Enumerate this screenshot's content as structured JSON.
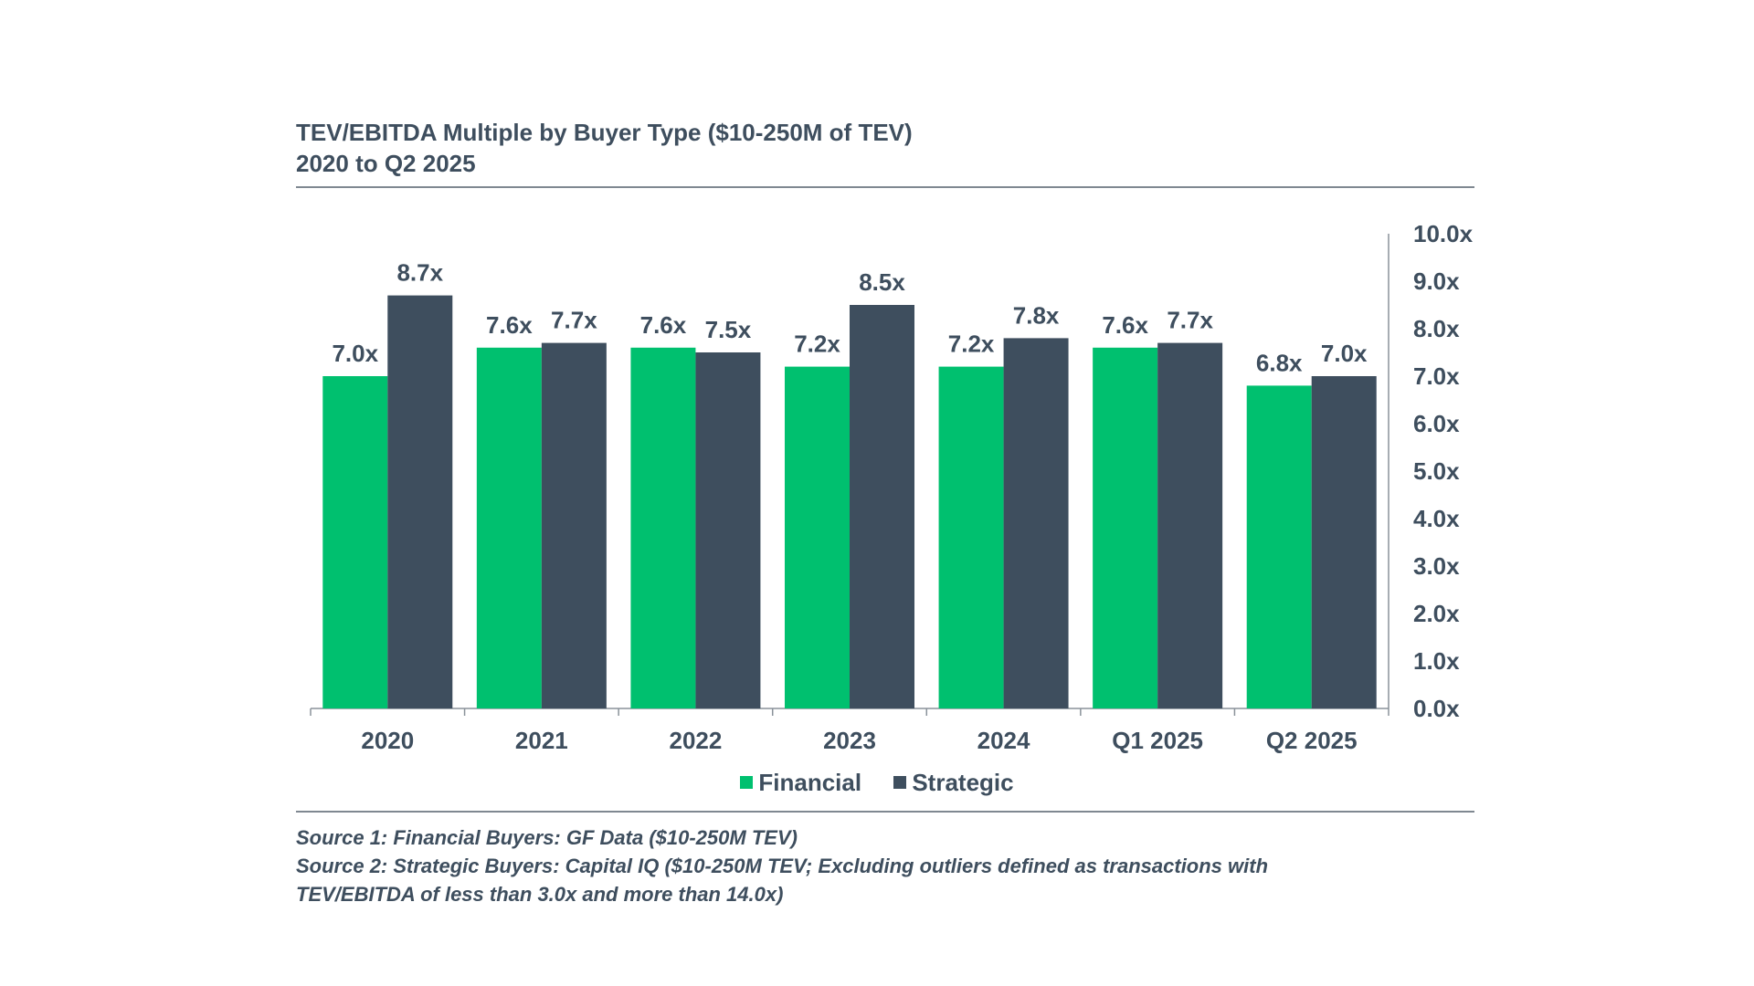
{
  "chart_data": {
    "type": "bar",
    "title": "TEV/EBITDA Multiple by Buyer Type ($10-250M of TEV)",
    "subtitle": "2020 to Q2 2025",
    "categories": [
      "2020",
      "2021",
      "2022",
      "2023",
      "2024",
      "Q1 2025",
      "Q2 2025"
    ],
    "series": [
      {
        "name": "Financial",
        "color": "#00c06f",
        "values": [
          7.0,
          7.6,
          7.6,
          7.2,
          7.2,
          7.6,
          6.8
        ],
        "labels": [
          "7.0x",
          "7.6x",
          "7.6x",
          "7.2x",
          "7.2x",
          "7.6x",
          "6.8x"
        ]
      },
      {
        "name": "Strategic",
        "color": "#3e4e5e",
        "values": [
          8.7,
          7.7,
          7.5,
          8.5,
          7.8,
          7.7,
          7.0
        ],
        "labels": [
          "8.7x",
          "7.7x",
          "7.5x",
          "8.5x",
          "7.8x",
          "7.7x",
          "7.0x"
        ]
      }
    ],
    "ylim": [
      0,
      10
    ],
    "yticks": [
      "0.0x",
      "1.0x",
      "2.0x",
      "3.0x",
      "4.0x",
      "5.0x",
      "6.0x",
      "7.0x",
      "8.0x",
      "9.0x",
      "10.0x"
    ],
    "yaxis_position": "right",
    "grid": false,
    "legend_position": "bottom-center"
  },
  "sources": [
    "Source 1: Financial Buyers: GF Data ($10-250M TEV)",
    "Source 2: Strategic Buyers: Capital IQ ($10-250M TEV; Excluding outliers defined as transactions with",
    "TEV/EBITDA of less than 3.0x and more than 14.0x)"
  ]
}
